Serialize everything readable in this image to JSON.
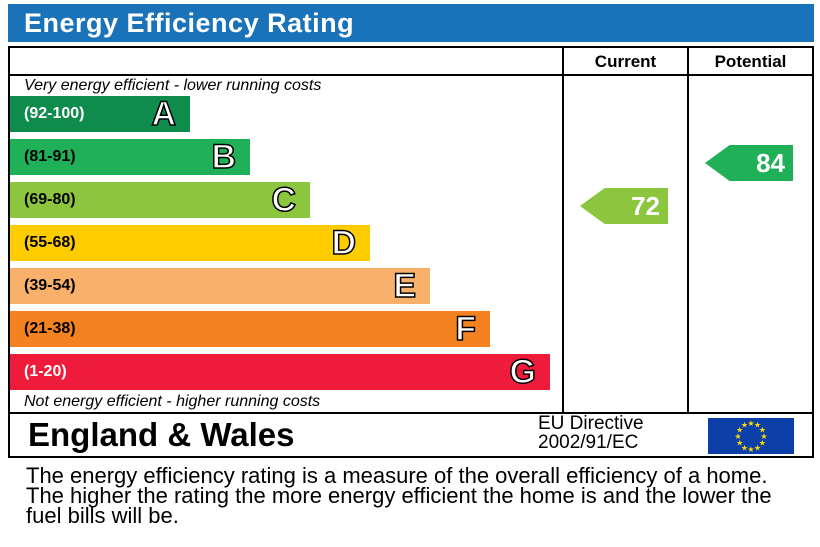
{
  "header": {
    "title": "Energy Efficiency Rating"
  },
  "columns": {
    "current": "Current",
    "potential": "Potential"
  },
  "notes": {
    "top": "Very energy efficient - lower running costs",
    "bottom": "Not energy efficient - higher running costs"
  },
  "footer": {
    "country": "England & Wales",
    "directive_line1": "EU Directive",
    "directive_line2": "2002/91/EC",
    "flag": "eu-flag-icon"
  },
  "description": "The energy efficiency rating is a measure of the overall efficiency of a home. The higher the rating the more energy efficient the home is and the lower the fuel bills will be.",
  "chart_data": {
    "type": "bar",
    "title": "Energy Efficiency Rating",
    "bands": [
      {
        "letter": "A",
        "range": "(92-100)",
        "min": 92,
        "max": 100,
        "color": "#0f8b4c"
      },
      {
        "letter": "B",
        "range": "(81-91)",
        "min": 81,
        "max": 91,
        "color": "#1fb058"
      },
      {
        "letter": "C",
        "range": "(69-80)",
        "min": 69,
        "max": 80,
        "color": "#8cc63f"
      },
      {
        "letter": "D",
        "range": "(55-68)",
        "min": 55,
        "max": 68,
        "color": "#ffcc00"
      },
      {
        "letter": "E",
        "range": "(39-54)",
        "min": 39,
        "max": 54,
        "color": "#f9b06a"
      },
      {
        "letter": "F",
        "range": "(21-38)",
        "min": 21,
        "max": 38,
        "color": "#f58220"
      },
      {
        "letter": "G",
        "range": "(1-20)",
        "min": 1,
        "max": 20,
        "color": "#ee1c3a"
      }
    ],
    "current": {
      "value": 72,
      "band": "C",
      "color": "#8cc63f"
    },
    "potential": {
      "value": 84,
      "band": "B",
      "color": "#1fb058"
    }
  }
}
